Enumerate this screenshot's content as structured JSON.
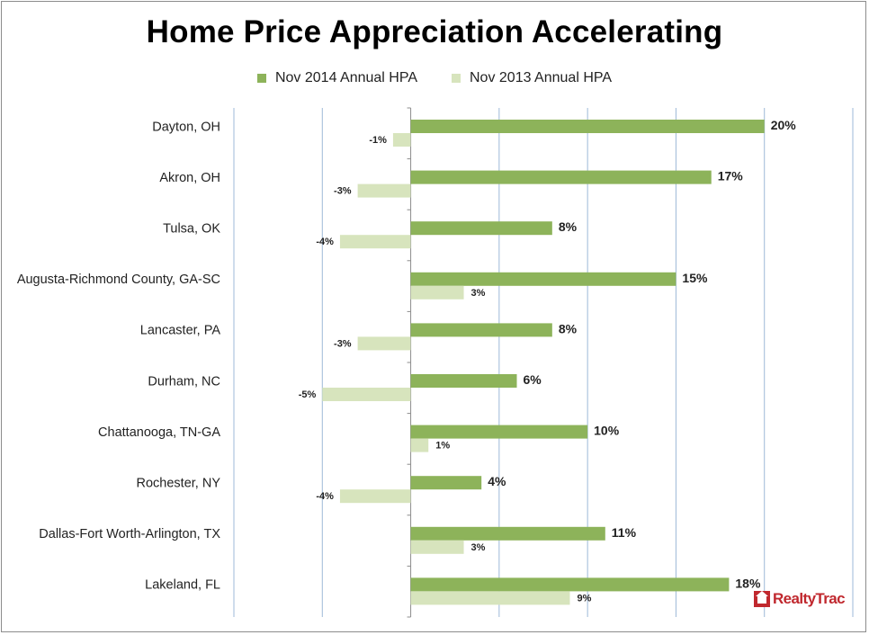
{
  "chart_data": {
    "type": "bar",
    "orientation": "horizontal",
    "title": "Home Price Appreciation Accelerating",
    "categories": [
      "Dayton, OH",
      "Akron, OH",
      "Tulsa, OK",
      "Augusta-Richmond County, GA-SC",
      "Lancaster, PA",
      "Durham, NC",
      "Chattanooga, TN-GA",
      "Rochester, NY",
      "Dallas-Fort Worth-Arlington, TX",
      "Lakeland, FL"
    ],
    "series": [
      {
        "name": "Nov 2014 Annual HPA",
        "color": "#8db35a",
        "values": [
          20,
          17,
          8,
          15,
          8,
          6,
          10,
          4,
          11,
          18
        ],
        "labels": [
          "20%",
          "17%",
          "8%",
          "15%",
          "8%",
          "6%",
          "10%",
          "4%",
          "11%",
          "18%"
        ]
      },
      {
        "name": "Nov 2013 Annual HPA",
        "color": "#d7e4bd",
        "values": [
          -1,
          -3,
          -4,
          3,
          -3,
          -5,
          1,
          -4,
          3,
          9
        ],
        "labels": [
          "-1%",
          "-3%",
          "-4%",
          "3%",
          "-3%",
          "-5%",
          "1%",
          "-4%",
          "3%",
          "9%"
        ]
      }
    ],
    "xlim": [
      -10,
      25
    ],
    "xgrid": [
      -10,
      -5,
      0,
      5,
      10,
      15,
      20,
      25
    ],
    "grid": true,
    "legend_position": "top"
  },
  "branding": {
    "logo_text": "RealtyTrac"
  }
}
